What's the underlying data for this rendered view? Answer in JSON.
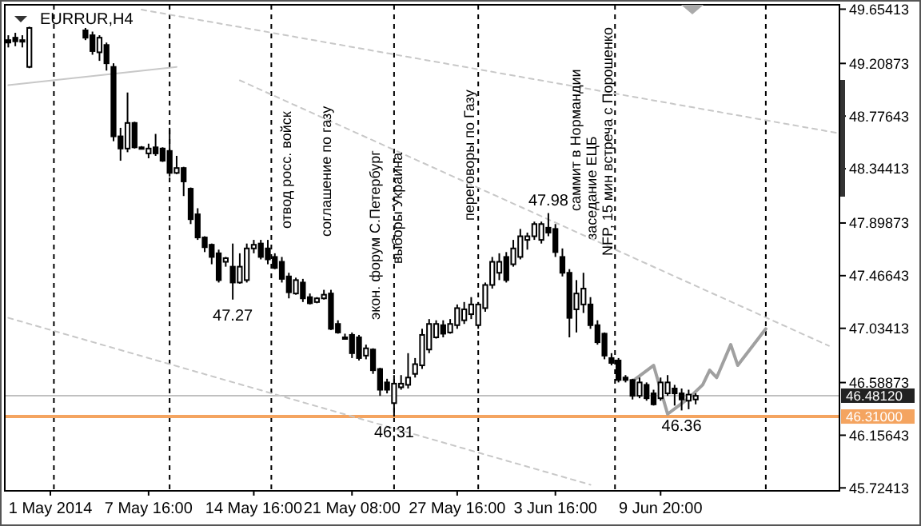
{
  "chart_data": {
    "type": "candlestick",
    "title": "EURRUR,H4",
    "categories": [
      null,
      null,
      null,
      null,
      null,
      null,
      "1 May 2014",
      null,
      null,
      null,
      null,
      null,
      null,
      null,
      null,
      null,
      null,
      null,
      null,
      null,
      "7 May 16:00",
      null,
      null,
      null,
      null,
      null,
      null,
      null,
      null,
      null,
      null,
      null,
      null,
      null,
      null,
      "14 May 16:00",
      null,
      null,
      null,
      null,
      null,
      null,
      null,
      null,
      null,
      null,
      null,
      null,
      null,
      "21 May 08:00",
      null,
      null,
      null,
      null,
      null,
      null,
      null,
      null,
      null,
      null,
      null,
      null,
      null,
      null,
      "27 May 16:00",
      null,
      null,
      null,
      null,
      null,
      null,
      null,
      null,
      null,
      null,
      null,
      null,
      null,
      "3 Jun 16:00",
      null,
      null,
      null,
      null,
      null,
      null,
      null,
      null,
      null,
      null,
      null,
      null,
      null,
      null,
      "9 Jun 20:00",
      null,
      null,
      null,
      null,
      null,
      null,
      null,
      null,
      null,
      null,
      null,
      null,
      null,
      null,
      null,
      null,
      null,
      null,
      null,
      null,
      null,
      null,
      null,
      null,
      null
    ],
    "ohlc": [
      [
        49.4,
        49.44,
        49.34,
        49.38
      ],
      [
        49.42,
        49.46,
        49.35,
        49.39
      ],
      [
        49.39,
        49.44,
        49.34,
        49.4
      ],
      [
        49.18,
        49.51,
        49.17,
        49.5
      ],
      null,
      null,
      null,
      null,
      null,
      null,
      null,
      [
        49.48,
        49.5,
        49.4,
        49.42
      ],
      [
        49.44,
        49.47,
        49.28,
        49.31
      ],
      [
        49.3,
        49.44,
        49.23,
        49.42
      ],
      [
        49.36,
        49.38,
        49.15,
        49.21
      ],
      [
        49.18,
        49.21,
        48.57,
        48.61
      ],
      [
        48.61,
        48.68,
        48.41,
        48.51
      ],
      [
        48.51,
        48.97,
        48.48,
        48.72
      ],
      [
        48.72,
        48.73,
        48.51,
        48.52
      ],
      [
        48.52,
        48.53,
        48.51,
        48.52
      ],
      [
        48.47,
        48.55,
        48.43,
        48.51
      ],
      [
        48.52,
        48.63,
        48.45,
        48.47
      ],
      [
        48.51,
        48.52,
        48.4,
        48.41
      ],
      [
        48.49,
        48.68,
        48.28,
        48.31
      ],
      [
        48.31,
        48.45,
        48.3,
        48.35
      ],
      [
        48.35,
        48.36,
        48.12,
        48.24
      ],
      [
        48.18,
        48.19,
        47.89,
        47.93
      ],
      [
        47.97,
        48.02,
        47.76,
        47.78
      ],
      [
        47.78,
        47.79,
        47.66,
        47.7
      ],
      [
        47.72,
        47.73,
        47.56,
        47.62
      ],
      [
        47.65,
        47.68,
        47.41,
        47.43
      ],
      [
        47.58,
        47.62,
        47.54,
        47.61
      ],
      [
        47.54,
        47.73,
        47.27,
        47.41
      ],
      [
        47.41,
        47.65,
        47.4,
        47.54
      ],
      [
        47.43,
        47.73,
        47.41,
        47.69
      ],
      [
        47.69,
        47.76,
        47.65,
        47.72
      ],
      [
        47.73,
        47.76,
        47.6,
        47.62
      ],
      [
        47.69,
        47.76,
        47.56,
        47.6
      ],
      [
        47.62,
        47.65,
        47.52,
        47.53
      ],
      [
        47.58,
        47.62,
        47.41,
        47.44
      ],
      [
        47.46,
        47.49,
        47.28,
        47.33
      ],
      [
        47.32,
        47.45,
        47.31,
        47.43
      ],
      [
        47.41,
        47.44,
        47.25,
        47.28
      ],
      [
        47.29,
        47.32,
        47.23,
        47.24
      ],
      [
        47.25,
        47.29,
        47.24,
        47.28
      ],
      [
        47.28,
        47.35,
        47.27,
        47.31
      ],
      [
        47.32,
        47.35,
        47.02,
        47.03
      ],
      [
        47.07,
        47.1,
        46.99,
        47.0
      ],
      [
        46.96,
        46.99,
        46.94,
        46.95
      ],
      [
        46.98,
        47.0,
        46.79,
        46.83
      ],
      [
        46.96,
        46.98,
        46.77,
        46.79
      ],
      [
        46.81,
        46.9,
        46.78,
        46.87
      ],
      [
        46.86,
        46.87,
        46.66,
        46.69
      ],
      [
        46.7,
        46.71,
        46.48,
        46.53
      ],
      [
        46.59,
        46.62,
        46.5,
        46.53
      ],
      [
        46.42,
        46.65,
        46.31,
        46.58
      ],
      [
        46.55,
        46.65,
        46.53,
        46.58
      ],
      [
        46.57,
        46.83,
        46.54,
        46.63
      ],
      [
        46.66,
        46.79,
        46.63,
        46.74
      ],
      [
        46.73,
        47.03,
        46.7,
        46.98
      ],
      [
        46.86,
        47.11,
        46.83,
        47.07
      ],
      [
        46.96,
        47.1,
        46.95,
        47.07
      ],
      [
        47.06,
        47.1,
        46.96,
        46.99
      ],
      [
        47.0,
        47.11,
        46.99,
        47.07
      ],
      [
        47.06,
        47.23,
        47.03,
        47.2
      ],
      [
        47.1,
        47.25,
        47.07,
        47.19
      ],
      [
        47.15,
        47.29,
        47.11,
        47.23
      ],
      [
        47.06,
        47.25,
        47.03,
        47.23
      ],
      [
        47.2,
        47.41,
        47.17,
        47.39
      ],
      [
        47.39,
        47.62,
        47.36,
        47.58
      ],
      [
        47.49,
        47.65,
        47.43,
        47.58
      ],
      [
        47.62,
        47.66,
        47.41,
        47.43
      ],
      [
        47.56,
        47.76,
        47.54,
        47.69
      ],
      [
        47.62,
        47.85,
        47.6,
        47.79
      ],
      [
        47.76,
        47.82,
        47.68,
        47.79
      ],
      [
        47.79,
        47.91,
        47.76,
        47.89
      ],
      [
        47.76,
        47.91,
        47.73,
        47.89
      ],
      [
        47.86,
        47.98,
        47.79,
        47.82
      ],
      [
        47.85,
        47.89,
        47.62,
        47.66
      ],
      [
        47.62,
        47.69,
        47.46,
        47.49
      ],
      [
        47.49,
        47.52,
        46.96,
        47.12
      ],
      [
        47.19,
        47.43,
        47.0,
        47.32
      ],
      [
        47.23,
        47.49,
        47.16,
        47.36
      ],
      [
        47.23,
        47.29,
        47.03,
        47.06
      ],
      [
        47.06,
        47.1,
        46.9,
        46.92
      ],
      [
        46.99,
        47.0,
        46.78,
        46.81
      ],
      [
        46.79,
        46.83,
        46.73,
        46.75
      ],
      [
        46.77,
        46.79,
        46.59,
        46.61
      ],
      [
        46.63,
        46.65,
        46.59,
        46.61
      ],
      [
        46.61,
        46.62,
        46.45,
        46.48
      ],
      [
        46.48,
        46.63,
        46.46,
        46.59
      ],
      [
        46.57,
        46.59,
        46.44,
        46.46
      ],
      [
        46.5,
        46.53,
        46.4,
        46.41
      ],
      [
        46.46,
        46.63,
        46.44,
        46.59
      ],
      [
        46.5,
        46.65,
        46.48,
        46.59
      ],
      [
        46.54,
        46.57,
        46.4,
        46.5
      ],
      [
        46.5,
        46.54,
        46.36,
        46.45
      ],
      [
        46.44,
        46.53,
        46.37,
        46.49
      ],
      [
        46.45,
        46.5,
        46.41,
        46.48
      ],
      null,
      null,
      null,
      null,
      null,
      null,
      null,
      null,
      null,
      null,
      null,
      null,
      null,
      null,
      null,
      null,
      null,
      null,
      null,
      null
    ],
    "series": [
      {
        "type": "line",
        "color": "#c8c8c8",
        "line_style": "dashed",
        "values": [
          null,
          null,
          null,
          null,
          null,
          null,
          null,
          null,
          null,
          null,
          null,
          null,
          null,
          null,
          null,
          null,
          null,
          null,
          null,
          49.65,
          null,
          null,
          null,
          null,
          null,
          null,
          null,
          null,
          null,
          null,
          null,
          null,
          null,
          null,
          null,
          null,
          null,
          null,
          null,
          null,
          null,
          null,
          null,
          null,
          null,
          null,
          null,
          null,
          null,
          null,
          null,
          null,
          null,
          null,
          null,
          null,
          null,
          null,
          null,
          null,
          null,
          null,
          null,
          null,
          null,
          null,
          null,
          null,
          null,
          null,
          null,
          null,
          null,
          null,
          null,
          null,
          null,
          null,
          null,
          null,
          null,
          null,
          null,
          null,
          null,
          null,
          null,
          null,
          null,
          null,
          null,
          null,
          null,
          null,
          null,
          null,
          null,
          null,
          null,
          null,
          null,
          null,
          null,
          null,
          null,
          null,
          null,
          null,
          null,
          null,
          null,
          null,
          null,
          null,
          null,
          null,
          null,
          null,
          48.64
        ]
      },
      {
        "type": "line",
        "color": "#c8c8c8",
        "line_style": "dashed",
        "values": [
          null,
          null,
          null,
          null,
          null,
          null,
          null,
          null,
          null,
          null,
          null,
          null,
          null,
          null,
          null,
          null,
          null,
          null,
          null,
          null,
          null,
          null,
          null,
          null,
          null,
          null,
          null,
          null,
          null,
          null,
          null,
          null,
          null,
          49.07,
          null,
          null,
          null,
          null,
          null,
          null,
          null,
          null,
          null,
          null,
          null,
          null,
          null,
          null,
          null,
          null,
          null,
          null,
          null,
          null,
          null,
          null,
          null,
          null,
          null,
          null,
          null,
          null,
          null,
          null,
          null,
          null,
          null,
          null,
          null,
          null,
          null,
          null,
          null,
          null,
          null,
          null,
          null,
          null,
          null,
          null,
          null,
          null,
          null,
          null,
          null,
          null,
          null,
          null,
          null,
          null,
          null,
          null,
          null,
          null,
          null,
          null,
          null,
          null,
          null,
          null,
          null,
          null,
          null,
          null,
          null,
          null,
          null,
          null,
          null,
          null,
          null,
          null,
          null,
          null,
          null,
          null,
          null,
          46.89,
          null
        ]
      },
      {
        "type": "line",
        "color": "#c8c8c8",
        "line_style": "dashed",
        "values": [
          47.12,
          null,
          null,
          null,
          null,
          null,
          null,
          null,
          null,
          null,
          null,
          null,
          null,
          null,
          null,
          null,
          null,
          null,
          null,
          null,
          null,
          null,
          null,
          null,
          null,
          null,
          null,
          null,
          null,
          null,
          null,
          null,
          null,
          null,
          null,
          null,
          null,
          null,
          null,
          null,
          null,
          null,
          null,
          null,
          null,
          null,
          null,
          null,
          null,
          null,
          null,
          null,
          null,
          null,
          null,
          null,
          null,
          null,
          null,
          null,
          null,
          null,
          null,
          null,
          null,
          null,
          null,
          null,
          null,
          null,
          null,
          null,
          null,
          null,
          null,
          null,
          null,
          null,
          null,
          null,
          null,
          null,
          null,
          45.75,
          null,
          null,
          null,
          null,
          null,
          null,
          null,
          null,
          null,
          null,
          null,
          null,
          null,
          null,
          null,
          null,
          null,
          null,
          null,
          null,
          null,
          null,
          null,
          null,
          null,
          null,
          null,
          null,
          null,
          null,
          null,
          null,
          null,
          null,
          null
        ]
      },
      {
        "type": "line",
        "color": "#c8c8c8",
        "line_style": "solid",
        "values": [
          49.03,
          null,
          null,
          null,
          null,
          null,
          null,
          null,
          null,
          null,
          null,
          null,
          null,
          null,
          null,
          null,
          null,
          null,
          null,
          null,
          null,
          null,
          null,
          null,
          49.18,
          null,
          null,
          null,
          null,
          null,
          null,
          null,
          null,
          null,
          null,
          null,
          null,
          null,
          null,
          null,
          null,
          null,
          null,
          null,
          null,
          null,
          null,
          null,
          null,
          null,
          null,
          null,
          null,
          null,
          null,
          null,
          null,
          null,
          null,
          null,
          null,
          null,
          null,
          null,
          null,
          null,
          null,
          null,
          null,
          null,
          null,
          null,
          null,
          null,
          null,
          null,
          null,
          null,
          null,
          null,
          null,
          null,
          null,
          null,
          null,
          null,
          null,
          null,
          null,
          null,
          null,
          null,
          null,
          null,
          null,
          null,
          null,
          null,
          null,
          null,
          null,
          null,
          null,
          null,
          null,
          null,
          null,
          null,
          null,
          null,
          null,
          null,
          null,
          null,
          null,
          null,
          null,
          null,
          null
        ]
      },
      {
        "type": "line",
        "color": "#a0a0a0",
        "line_style": "solid",
        "values": [
          null,
          null,
          null,
          null,
          null,
          null,
          null,
          null,
          null,
          null,
          null,
          null,
          null,
          null,
          null,
          null,
          null,
          null,
          null,
          null,
          null,
          null,
          null,
          null,
          null,
          null,
          null,
          null,
          null,
          null,
          null,
          null,
          null,
          null,
          null,
          null,
          null,
          null,
          null,
          null,
          null,
          null,
          null,
          null,
          null,
          null,
          null,
          null,
          null,
          null,
          null,
          null,
          null,
          null,
          null,
          null,
          null,
          null,
          null,
          null,
          null,
          null,
          null,
          null,
          null,
          null,
          null,
          null,
          null,
          null,
          null,
          null,
          null,
          null,
          null,
          null,
          null,
          null,
          null,
          null,
          null,
          null,
          null,
          null,
          null,
          null,
          null,
          null,
          null,
          46.6,
          null,
          null,
          46.73,
          null,
          46.33,
          null,
          null,
          46.46,
          null,
          46.57,
          46.69,
          46.63,
          null,
          46.9,
          46.73,
          null,
          null,
          null,
          47.03,
          null,
          null,
          null,
          null,
          null,
          null,
          null,
          null,
          null,
          null
        ]
      }
    ],
    "grid": "x",
    "ylim": [
      45.7,
      49.69
    ],
    "yticks": [
      45.72413,
      46.15643,
      46.58873,
      47.03413,
      47.46643,
      47.89873,
      48.34413,
      48.77643,
      49.20873,
      49.65413
    ],
    "ref_lines": [
      {
        "axis": "y",
        "value": 46.4812,
        "label": "46.48120",
        "color": "#c0c0c0",
        "line_style": "solid"
      },
      {
        "axis": "y",
        "value": 46.31,
        "label": "46.31000",
        "color": "#f4a460",
        "line_style": "solid"
      }
    ],
    "annotations": [
      "отвод росс. войск",
      "соглашение по газу",
      "экон. форум С.Петербург",
      "выборы Украина",
      "переговоры по Газу",
      "саммит в Нормандии",
      "заседание ЕЦБ",
      "NFP, 15 мин встреча с Порошенко",
      {
        "text": "47.27",
        "y": 47.27
      },
      {
        "text": "46.31",
        "y": 46.31
      },
      {
        "text": "47.98",
        "y": 47.98
      },
      {
        "text": "46.36",
        "y": 46.36
      }
    ]
  }
}
